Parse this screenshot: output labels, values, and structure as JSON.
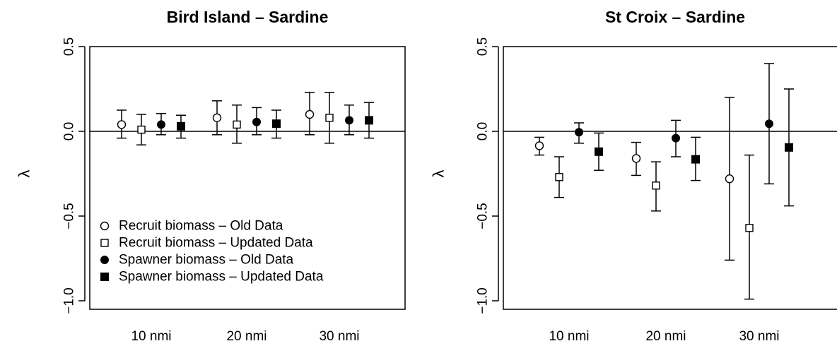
{
  "chart_data": [
    {
      "type": "scatter",
      "title": "Bird Island  – Sardine",
      "ylabel": "λ",
      "categories": [
        "10 nmi",
        "20 nmi",
        "30 nmi"
      ],
      "ylim": [
        -1.05,
        0.5
      ],
      "yticks": [
        "0.5",
        "0.0",
        "−0.5",
        "−1.0"
      ],
      "ytick_values": [
        0.5,
        0.0,
        -0.5,
        -1.0
      ],
      "reference_line": 0,
      "grid": false,
      "legend_position": "bottom-left",
      "series": [
        {
          "name": "Recruit biomass – Old Data",
          "marker": "open-circle",
          "values": [
            0.04,
            0.08,
            0.1
          ],
          "lower": [
            -0.04,
            -0.02,
            -0.02
          ],
          "upper": [
            0.125,
            0.18,
            0.23
          ]
        },
        {
          "name": "Recruit biomass – Updated Data",
          "marker": "open-square",
          "values": [
            0.01,
            0.04,
            0.08
          ],
          "lower": [
            -0.08,
            -0.07,
            -0.07
          ],
          "upper": [
            0.1,
            0.155,
            0.23
          ]
        },
        {
          "name": "Spawner biomass – Old Data",
          "marker": "filled-circle",
          "values": [
            0.04,
            0.055,
            0.065
          ],
          "lower": [
            -0.02,
            -0.02,
            -0.02
          ],
          "upper": [
            0.105,
            0.14,
            0.155
          ]
        },
        {
          "name": "Spawner biomass – Updated Data",
          "marker": "filled-square",
          "values": [
            0.03,
            0.045,
            0.065
          ],
          "lower": [
            -0.04,
            -0.04,
            -0.04
          ],
          "upper": [
            0.095,
            0.125,
            0.17
          ]
        }
      ]
    },
    {
      "type": "scatter",
      "title": "St Croix  – Sardine",
      "ylabel": "λ",
      "categories": [
        "10 nmi",
        "20 nmi",
        "30 nmi"
      ],
      "ylim": [
        -1.05,
        0.5
      ],
      "yticks": [
        "0.5",
        "0.0",
        "−0.5",
        "−1.0"
      ],
      "ytick_values": [
        0.5,
        0.0,
        -0.5,
        -1.0
      ],
      "reference_line": 0,
      "grid": false,
      "legend_position": "none",
      "series": [
        {
          "name": "Recruit biomass – Old Data",
          "marker": "open-circle",
          "values": [
            -0.085,
            -0.16,
            -0.28
          ],
          "lower": [
            -0.14,
            -0.26,
            -0.76
          ],
          "upper": [
            -0.035,
            -0.065,
            0.2
          ]
        },
        {
          "name": "Recruit biomass – Updated Data",
          "marker": "open-square",
          "values": [
            -0.27,
            -0.32,
            -0.57
          ],
          "lower": [
            -0.39,
            -0.47,
            -0.99
          ],
          "upper": [
            -0.15,
            -0.18,
            -0.14
          ]
        },
        {
          "name": "Spawner biomass – Old Data",
          "marker": "filled-circle",
          "values": [
            -0.005,
            -0.04,
            0.045
          ],
          "lower": [
            -0.07,
            -0.15,
            -0.31
          ],
          "upper": [
            0.05,
            0.065,
            0.4
          ]
        },
        {
          "name": "Spawner biomass – Updated Data",
          "marker": "filled-square",
          "values": [
            -0.12,
            -0.165,
            -0.095
          ],
          "lower": [
            -0.23,
            -0.29,
            -0.44
          ],
          "upper": [
            -0.01,
            -0.035,
            0.25
          ]
        }
      ]
    }
  ]
}
